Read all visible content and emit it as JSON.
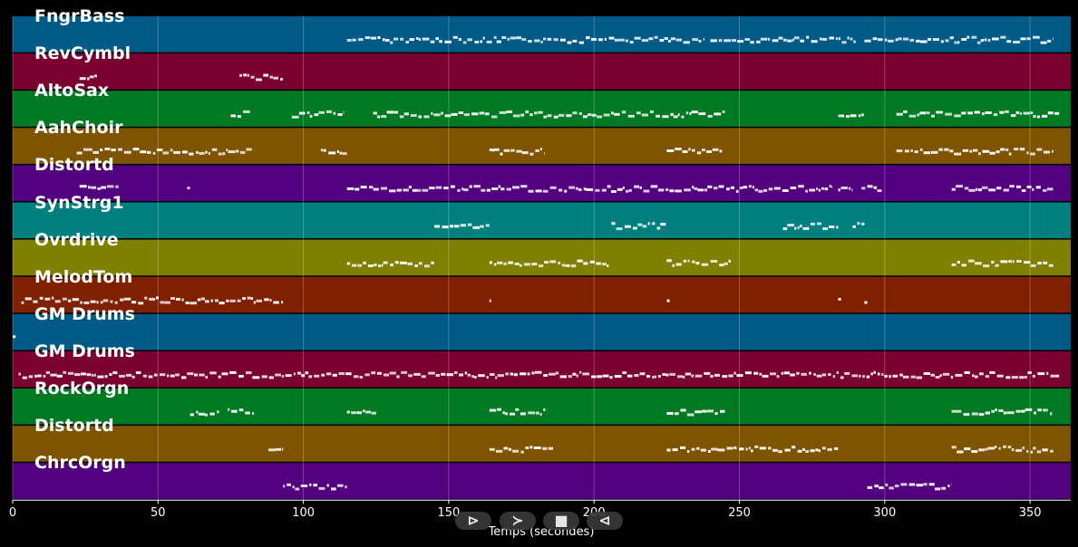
{
  "playback": {
    "play_symbol": "⊳",
    "forward_symbol": "≻",
    "stop_symbol": "■",
    "back_symbol": "⊲"
  },
  "chart_data": {
    "type": "piano-roll",
    "xlabel": "Temps (secondes)",
    "xlim": [
      0,
      364
    ],
    "xticks": [
      0,
      50,
      100,
      150,
      200,
      250,
      300,
      350
    ],
    "grid": true,
    "tracks": [
      {
        "name": "FngrBass",
        "color": "#005a87",
        "segments": [
          [
            115,
            238
          ],
          [
            240,
            290
          ],
          [
            293,
            358
          ]
        ]
      },
      {
        "name": "RevCymbl",
        "color": "#7a0030",
        "segments": [
          [
            23,
            29
          ],
          [
            78,
            93
          ]
        ]
      },
      {
        "name": "AltoSax",
        "color": "#007a22",
        "segments": [
          [
            75,
            82
          ],
          [
            96,
            114
          ],
          [
            124,
            245
          ],
          [
            284,
            293
          ],
          [
            304,
            360
          ]
        ]
      },
      {
        "name": "AahChoir",
        "color": "#7f5400",
        "segments": [
          [
            22,
            83
          ],
          [
            106,
            115
          ],
          [
            164,
            183
          ],
          [
            225,
            244
          ],
          [
            304,
            358
          ]
        ]
      },
      {
        "name": "Distortd",
        "color": "#52007f",
        "segments": [
          [
            23,
            37
          ],
          [
            60,
            61
          ],
          [
            115,
            282
          ],
          [
            284,
            289
          ],
          [
            292,
            299
          ],
          [
            323,
            358
          ]
        ]
      },
      {
        "name": "SynStrg1",
        "color": "#007f7f",
        "segments": [
          [
            145,
            164
          ],
          [
            206,
            225
          ],
          [
            265,
            284
          ],
          [
            289,
            293
          ]
        ]
      },
      {
        "name": "Ovrdrive",
        "color": "#7f7f00",
        "segments": [
          [
            115,
            145
          ],
          [
            164,
            205
          ],
          [
            225,
            247
          ],
          [
            323,
            358
          ]
        ]
      },
      {
        "name": "MelodTom",
        "color": "#7f2000",
        "segments": [
          [
            3,
            93
          ],
          [
            164,
            165
          ],
          [
            225,
            226
          ],
          [
            284,
            285
          ],
          [
            293,
            294
          ]
        ]
      },
      {
        "name": "GM Drums",
        "color": "#005a87",
        "segments": [
          [
            0,
            1
          ]
        ]
      },
      {
        "name": "GM Drums",
        "color": "#7a0030",
        "segments": [
          [
            2,
            360
          ]
        ]
      },
      {
        "name": "RockOrgn",
        "color": "#007a22",
        "segments": [
          [
            61,
            71
          ],
          [
            74,
            83
          ],
          [
            115,
            125
          ],
          [
            164,
            184
          ],
          [
            225,
            245
          ],
          [
            323,
            358
          ]
        ]
      },
      {
        "name": "Distortd",
        "color": "#7f5400",
        "segments": [
          [
            88,
            93
          ],
          [
            164,
            186
          ],
          [
            225,
            284
          ],
          [
            323,
            358
          ]
        ]
      },
      {
        "name": "ChrcOrgn",
        "color": "#52007f",
        "segments": [
          [
            93,
            115
          ],
          [
            294,
            323
          ]
        ]
      }
    ]
  }
}
